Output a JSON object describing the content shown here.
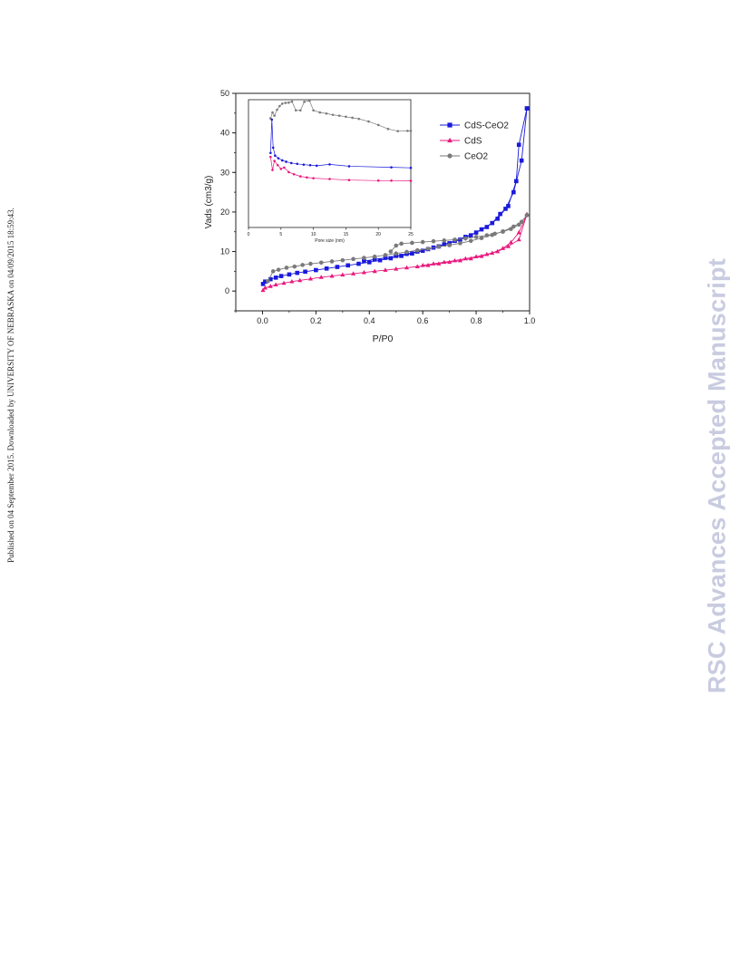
{
  "page": {
    "side_note": "Published on 04 September 2015. Downloaded by UNIVERSITY OF NEBRASKA on 04/09/2015 18:59:43.",
    "watermark": "RSC Advances Accepted Manuscript"
  },
  "chart_data": [
    {
      "type": "scatter",
      "title": "",
      "xlabel": "P/P0",
      "ylabel": "Vads (cm3/g)",
      "xlim": [
        -0.1,
        1.0
      ],
      "ylim": [
        -5,
        50
      ],
      "xticks": [
        0.0,
        0.2,
        0.4,
        0.6,
        0.8,
        1.0
      ],
      "xtick_labels": [
        "0.0",
        "0.2",
        "0.4",
        "0.6",
        "0.8",
        "1.0"
      ],
      "yticks": [
        0,
        10,
        20,
        30,
        40,
        50
      ],
      "ytick_labels": [
        "0",
        "10",
        "20",
        "30",
        "40",
        "50"
      ],
      "grid": false,
      "legend": "top-right",
      "series": [
        {
          "name": "CdS-CeO2",
          "color": "#1a1adc",
          "marker": "square",
          "adsorption": [
            [
              0.002,
              1.8
            ],
            [
              0.01,
              2.4
            ],
            [
              0.03,
              3.0
            ],
            [
              0.05,
              3.4
            ],
            [
              0.07,
              3.8
            ],
            [
              0.1,
              4.2
            ],
            [
              0.13,
              4.6
            ],
            [
              0.16,
              4.9
            ],
            [
              0.2,
              5.3
            ],
            [
              0.24,
              5.7
            ],
            [
              0.28,
              6.1
            ],
            [
              0.32,
              6.5
            ],
            [
              0.36,
              6.9
            ],
            [
              0.4,
              7.3
            ],
            [
              0.44,
              7.8
            ],
            [
              0.48,
              8.3
            ],
            [
              0.52,
              8.9
            ],
            [
              0.56,
              9.5
            ],
            [
              0.6,
              10.2
            ],
            [
              0.64,
              11.0
            ],
            [
              0.68,
              11.8
            ],
            [
              0.72,
              12.7
            ],
            [
              0.76,
              13.7
            ],
            [
              0.8,
              14.8
            ],
            [
              0.84,
              16.2
            ],
            [
              0.88,
              18.3
            ],
            [
              0.91,
              20.8
            ],
            [
              0.94,
              25.0
            ],
            [
              0.97,
              33.0
            ],
            [
              0.99,
              46.2
            ]
          ],
          "desorption": [
            [
              0.99,
              46.2
            ],
            [
              0.96,
              37.0
            ],
            [
              0.95,
              27.8
            ],
            [
              0.92,
              21.5
            ],
            [
              0.89,
              19.5
            ],
            [
              0.86,
              17.2
            ],
            [
              0.82,
              15.6
            ],
            [
              0.78,
              14.1
            ],
            [
              0.74,
              13.0
            ],
            [
              0.7,
              12.1
            ],
            [
              0.66,
              11.3
            ],
            [
              0.62,
              10.6
            ],
            [
              0.58,
              10.0
            ],
            [
              0.54,
              9.4
            ],
            [
              0.5,
              8.9
            ],
            [
              0.46,
              8.4
            ],
            [
              0.42,
              8.0
            ],
            [
              0.38,
              7.6
            ]
          ]
        },
        {
          "name": "CdS",
          "color": "#e8197d",
          "marker": "triangle",
          "adsorption": [
            [
              0.002,
              0.2
            ],
            [
              0.01,
              0.8
            ],
            [
              0.03,
              1.2
            ],
            [
              0.05,
              1.6
            ],
            [
              0.08,
              2.0
            ],
            [
              0.11,
              2.4
            ],
            [
              0.14,
              2.7
            ],
            [
              0.18,
              3.1
            ],
            [
              0.22,
              3.5
            ],
            [
              0.26,
              3.8
            ],
            [
              0.3,
              4.1
            ],
            [
              0.34,
              4.4
            ],
            [
              0.38,
              4.7
            ],
            [
              0.42,
              5.0
            ],
            [
              0.46,
              5.3
            ],
            [
              0.5,
              5.6
            ],
            [
              0.54,
              5.9
            ],
            [
              0.58,
              6.2
            ],
            [
              0.62,
              6.5
            ],
            [
              0.66,
              6.9
            ],
            [
              0.7,
              7.3
            ],
            [
              0.74,
              7.7
            ],
            [
              0.78,
              8.2
            ],
            [
              0.82,
              8.8
            ],
            [
              0.86,
              9.6
            ],
            [
              0.9,
              10.8
            ],
            [
              0.93,
              12.3
            ],
            [
              0.96,
              14.8
            ],
            [
              0.99,
              19.4
            ]
          ],
          "desorption": [
            [
              0.99,
              19.4
            ],
            [
              0.96,
              13.0
            ],
            [
              0.92,
              11.3
            ],
            [
              0.88,
              10.0
            ],
            [
              0.84,
              9.3
            ],
            [
              0.8,
              8.7
            ],
            [
              0.76,
              8.2
            ],
            [
              0.72,
              7.7
            ],
            [
              0.68,
              7.3
            ],
            [
              0.64,
              6.9
            ],
            [
              0.6,
              6.5
            ]
          ]
        },
        {
          "name": "CeO2",
          "color": "#7a7a7a",
          "marker": "circle",
          "adsorption": [
            [
              0.02,
              2.5
            ],
            [
              0.04,
              5.0
            ],
            [
              0.06,
              5.4
            ],
            [
              0.09,
              5.9
            ],
            [
              0.12,
              6.2
            ],
            [
              0.15,
              6.6
            ],
            [
              0.18,
              6.9
            ],
            [
              0.22,
              7.2
            ],
            [
              0.26,
              7.5
            ],
            [
              0.3,
              7.8
            ],
            [
              0.34,
              8.1
            ],
            [
              0.38,
              8.4
            ],
            [
              0.42,
              8.7
            ],
            [
              0.46,
              9.1
            ],
            [
              0.5,
              9.5
            ],
            [
              0.54,
              9.9
            ],
            [
              0.58,
              10.3
            ],
            [
              0.62,
              10.7
            ],
            [
              0.66,
              11.2
            ],
            [
              0.7,
              11.6
            ],
            [
              0.74,
              12.1
            ],
            [
              0.78,
              12.7
            ],
            [
              0.82,
              13.4
            ],
            [
              0.86,
              14.2
            ],
            [
              0.9,
              15.1
            ],
            [
              0.94,
              16.3
            ],
            [
              0.97,
              17.5
            ],
            [
              0.99,
              19.2
            ]
          ],
          "desorption": [
            [
              0.99,
              19.2
            ],
            [
              0.96,
              16.8
            ],
            [
              0.93,
              15.7
            ],
            [
              0.9,
              15.0
            ],
            [
              0.87,
              14.5
            ],
            [
              0.84,
              14.1
            ],
            [
              0.8,
              13.7
            ],
            [
              0.76,
              13.3
            ],
            [
              0.72,
              13.0
            ],
            [
              0.68,
              12.8
            ],
            [
              0.64,
              12.6
            ],
            [
              0.6,
              12.4
            ],
            [
              0.56,
              12.2
            ],
            [
              0.52,
              12.0
            ],
            [
              0.5,
              11.5
            ],
            [
              0.48,
              10.0
            ]
          ]
        }
      ]
    },
    {
      "type": "line",
      "title": "",
      "xlabel": "Pore size (nm)",
      "ylabel": "",
      "xlim": [
        0,
        25
      ],
      "ylim": [
        0,
        48
      ],
      "xticks": [
        0,
        5,
        10,
        15,
        20,
        25
      ],
      "xtick_labels": [
        "0",
        "5",
        "10",
        "15",
        "20",
        "25"
      ],
      "grid": false,
      "legend": "none",
      "series": [
        {
          "name": "CeO2",
          "color": "#7a7a7a",
          "points": [
            [
              3.4,
              41.0
            ],
            [
              3.7,
              43.2
            ],
            [
              4.0,
              42.0
            ],
            [
              4.4,
              44.2
            ],
            [
              4.8,
              45.6
            ],
            [
              5.2,
              46.5
            ],
            [
              5.7,
              46.8
            ],
            [
              6.2,
              46.9
            ],
            [
              6.7,
              47.3
            ],
            [
              7.3,
              44.0
            ],
            [
              8.0,
              44.0
            ],
            [
              8.6,
              47.2
            ],
            [
              9.4,
              47.6
            ],
            [
              10.0,
              44.0
            ],
            [
              11.0,
              43.2
            ],
            [
              12.0,
              42.8
            ],
            [
              13.0,
              42.3
            ],
            [
              14.0,
              42.0
            ],
            [
              15.0,
              41.6
            ],
            [
              16.0,
              41.2
            ],
            [
              17.0,
              40.8
            ],
            [
              18.5,
              39.8
            ],
            [
              20.0,
              38.5
            ],
            [
              21.5,
              37.0
            ],
            [
              23.0,
              36.2
            ],
            [
              24.5,
              36.3
            ],
            [
              25.0,
              36.3
            ]
          ]
        },
        {
          "name": "CdS-CeO2",
          "color": "#1a1adc",
          "points": [
            [
              3.4,
              28.0
            ],
            [
              3.6,
              40.5
            ],
            [
              3.8,
              30.0
            ],
            [
              4.1,
              27.0
            ],
            [
              4.6,
              26.0
            ],
            [
              5.2,
              25.2
            ],
            [
              5.8,
              24.7
            ],
            [
              6.6,
              24.2
            ],
            [
              7.5,
              23.9
            ],
            [
              8.5,
              23.6
            ],
            [
              9.5,
              23.4
            ],
            [
              10.5,
              23.2
            ],
            [
              12.5,
              23.7
            ],
            [
              15.5,
              23.0
            ],
            [
              22.0,
              22.6
            ],
            [
              25.0,
              22.4
            ]
          ]
        },
        {
          "name": "CdS",
          "color": "#e8197d",
          "points": [
            [
              3.4,
              26.5
            ],
            [
              3.7,
              21.6
            ],
            [
              4.0,
              25.0
            ],
            [
              4.5,
              23.4
            ],
            [
              5.0,
              22.0
            ],
            [
              5.5,
              22.5
            ],
            [
              6.2,
              20.8
            ],
            [
              7.0,
              20.0
            ],
            [
              8.0,
              19.2
            ],
            [
              9.0,
              18.8
            ],
            [
              10.0,
              18.5
            ],
            [
              12.5,
              18.2
            ],
            [
              15.5,
              17.8
            ],
            [
              20.0,
              17.6
            ],
            [
              22.0,
              17.6
            ],
            [
              25.0,
              17.5
            ]
          ]
        }
      ]
    }
  ]
}
